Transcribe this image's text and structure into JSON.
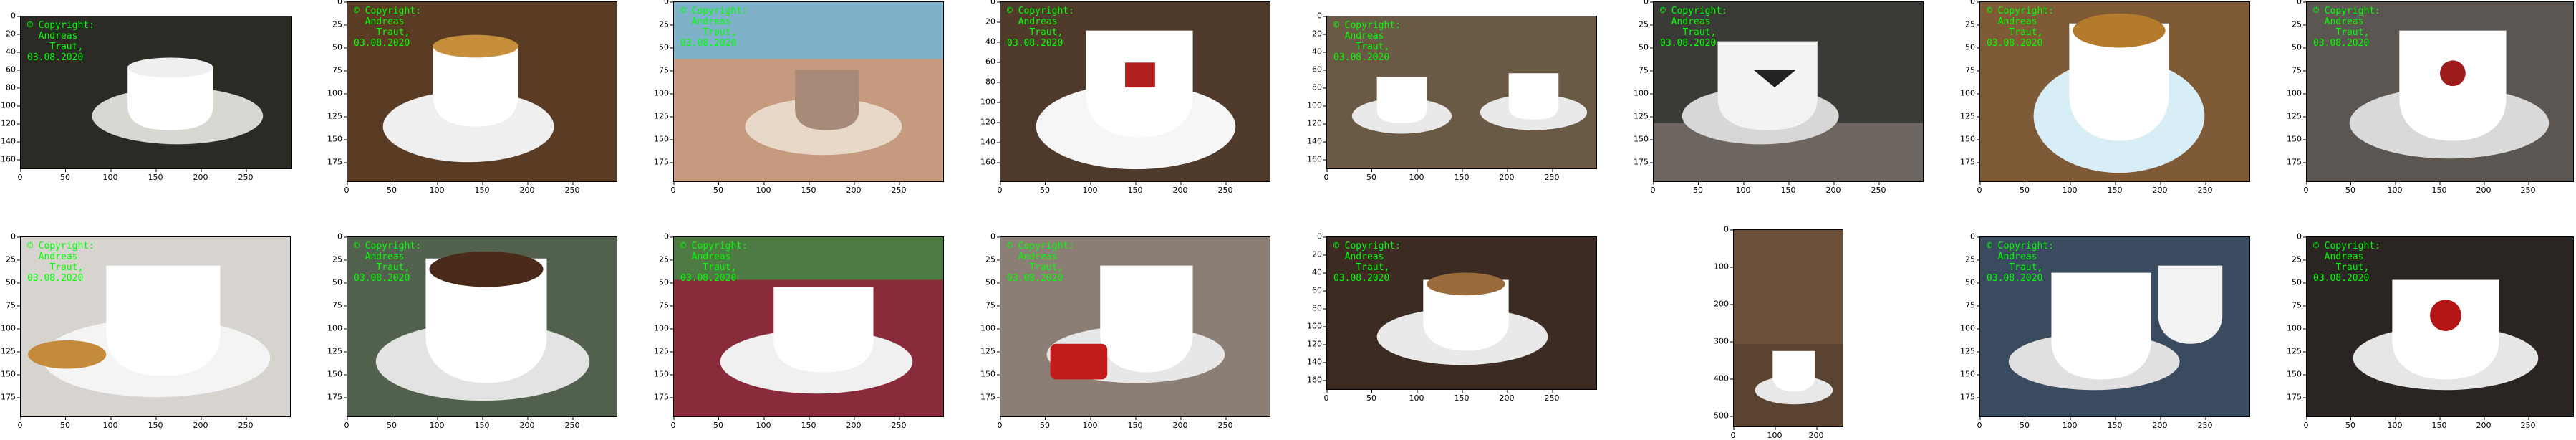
{
  "watermark": {
    "line1": "© Copyright:",
    "line2": "Andreas",
    "line3": "Traut,",
    "line4": "03.08.2020",
    "color": "#00ff00"
  },
  "panels": [
    {
      "id": "p1",
      "ylabels": [
        "0",
        "20",
        "40",
        "60",
        "80",
        "100",
        "120",
        "140",
        "160"
      ],
      "xlabels": [
        "0",
        "50",
        "100",
        "150",
        "200",
        "250"
      ],
      "bg": "#2c2a25",
      "fg": "#ffffff"
    },
    {
      "id": "p2",
      "ylabels": [
        "0",
        "25",
        "50",
        "75",
        "100",
        "125",
        "150",
        "175"
      ],
      "xlabels": [
        "0",
        "50",
        "100",
        "150",
        "200",
        "250"
      ],
      "bg": "#5a3b24",
      "fg": "#ffffff"
    },
    {
      "id": "p3",
      "ylabels": [
        "0",
        "25",
        "50",
        "75",
        "100",
        "125",
        "150",
        "175"
      ],
      "xlabels": [
        "0",
        "50",
        "100",
        "150",
        "200",
        "250"
      ],
      "bg": "#c59a7e",
      "fg": "#e7d8c7"
    },
    {
      "id": "p4",
      "ylabels": [
        "0",
        "20",
        "40",
        "60",
        "80",
        "100",
        "120",
        "140",
        "160"
      ],
      "xlabels": [
        "0",
        "50",
        "100",
        "150",
        "200",
        "250"
      ],
      "bg": "#4f3a2c",
      "fg": "#ffffff"
    },
    {
      "id": "p5",
      "ylabels": [
        "0",
        "20",
        "40",
        "60",
        "80",
        "100",
        "120",
        "140",
        "160"
      ],
      "xlabels": [
        "0",
        "50",
        "100",
        "150",
        "200",
        "250"
      ],
      "bg": "#6a5a45",
      "fg": "#ffffff"
    },
    {
      "id": "p6",
      "ylabels": [
        "0",
        "25",
        "50",
        "75",
        "100",
        "125",
        "150",
        "175"
      ],
      "xlabels": [
        "0",
        "50",
        "100",
        "150",
        "200",
        "250"
      ],
      "bg": "#3a3a36",
      "fg": "#f3f3f3"
    },
    {
      "id": "p7",
      "ylabels": [
        "0",
        "25",
        "50",
        "75",
        "100",
        "125",
        "150",
        "175"
      ],
      "xlabels": [
        "0",
        "50",
        "100",
        "150",
        "200",
        "250"
      ],
      "bg": "#7e5b36",
      "fg": "#ffffff"
    },
    {
      "id": "p8",
      "ylabels": [
        "0",
        "25",
        "50",
        "75",
        "100",
        "125",
        "150",
        "175"
      ],
      "xlabels": [
        "0",
        "50",
        "100",
        "150",
        "200",
        "250"
      ],
      "bg": "#5b5651",
      "fg": "#ffffff"
    },
    {
      "id": "p9",
      "ylabels": [
        "0",
        "25",
        "50",
        "75",
        "100",
        "125",
        "150",
        "175"
      ],
      "xlabels": [
        "0",
        "50",
        "100",
        "150",
        "200",
        "250"
      ],
      "bg": "#d7d4cf",
      "fg": "#f4f4f4"
    },
    {
      "id": "p10",
      "ylabels": [
        "0",
        "25",
        "50",
        "75",
        "100",
        "125",
        "150",
        "175"
      ],
      "xlabels": [
        "0",
        "50",
        "100",
        "150",
        "200",
        "250"
      ],
      "bg": "#52614d",
      "fg": "#ffffff"
    },
    {
      "id": "p11",
      "ylabels": [
        "0",
        "25",
        "50",
        "75",
        "100",
        "125",
        "150",
        "175"
      ],
      "xlabels": [
        "0",
        "50",
        "100",
        "150",
        "200",
        "250"
      ],
      "bg": "#8a2b3c",
      "fg": "#ffffff"
    },
    {
      "id": "p12",
      "ylabels": [
        "0",
        "25",
        "50",
        "75",
        "100",
        "125",
        "150",
        "175"
      ],
      "xlabels": [
        "0",
        "50",
        "100",
        "150",
        "200",
        "250"
      ],
      "bg": "#8b7f75",
      "fg": "#ffffff"
    },
    {
      "id": "p13",
      "ylabels": [
        "0",
        "20",
        "40",
        "60",
        "80",
        "100",
        "120",
        "140",
        "160"
      ],
      "xlabels": [
        "0",
        "50",
        "100",
        "150",
        "200",
        "250"
      ],
      "bg": "#3b2b22",
      "fg": "#ffffff"
    },
    {
      "id": "p14",
      "ylabels": [
        "0",
        "100",
        "200",
        "300",
        "400",
        "500"
      ],
      "xlabels": [
        "0",
        "100",
        "200"
      ],
      "bg": "#5a4330",
      "fg": "#ffffff"
    },
    {
      "id": "p15",
      "ylabels": [
        "0",
        "25",
        "50",
        "75",
        "100",
        "125",
        "150",
        "175"
      ],
      "xlabels": [
        "0",
        "50",
        "100",
        "150",
        "200",
        "250"
      ],
      "bg": "#3b4b5f",
      "fg": "#ffffff"
    },
    {
      "id": "p16",
      "ylabels": [
        "0",
        "25",
        "50",
        "75",
        "100",
        "125",
        "150",
        "175"
      ],
      "xlabels": [
        "0",
        "50",
        "100",
        "150",
        "200",
        "250"
      ],
      "bg": "#2a2522",
      "fg": "#ffffff"
    }
  ]
}
